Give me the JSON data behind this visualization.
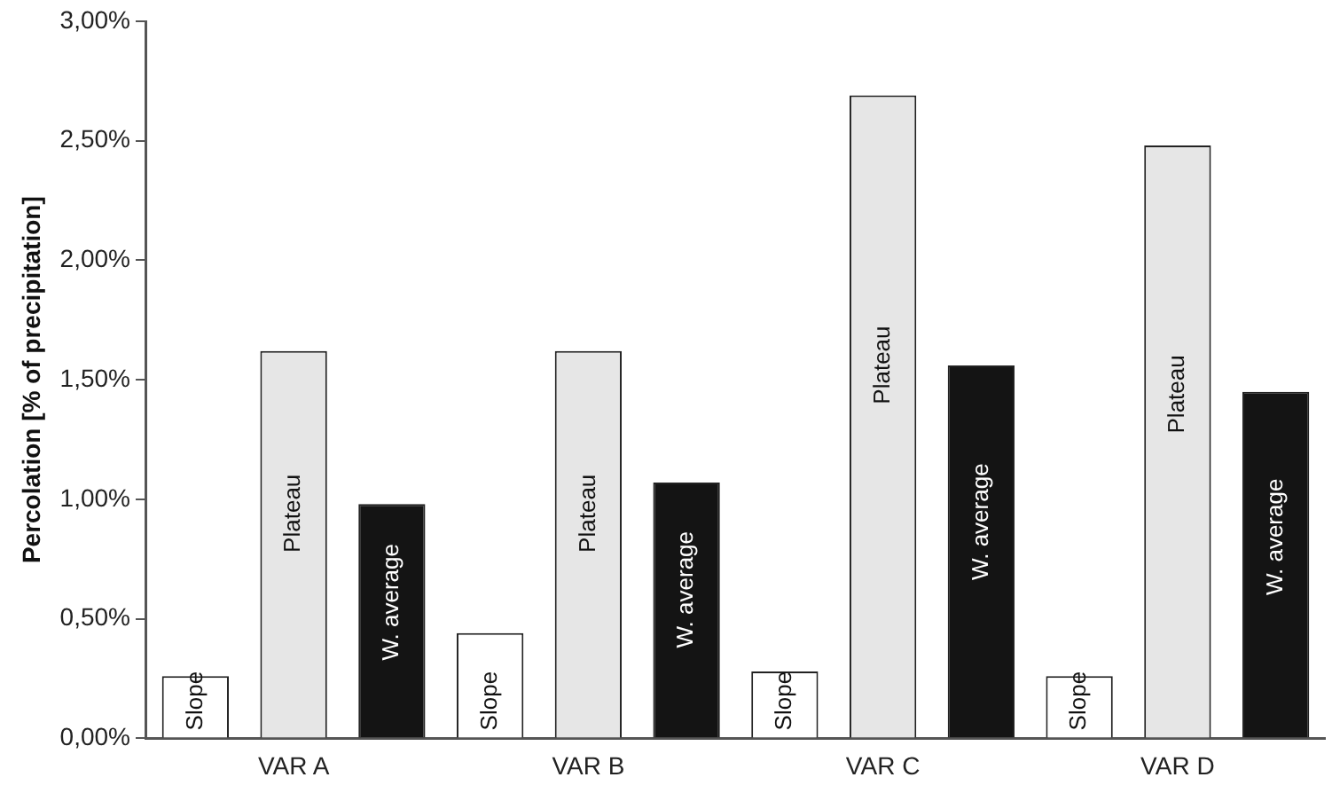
{
  "chart_data": {
    "type": "bar",
    "ylabel": "Percolation [% of precipitation]",
    "categories": [
      "VAR A",
      "VAR B",
      "VAR C",
      "VAR D"
    ],
    "series": [
      {
        "name": "Slope",
        "color": "#ffffff",
        "values": [
          0.26,
          0.44,
          0.28,
          0.26
        ]
      },
      {
        "name": "Plateau",
        "color": "#e6e6e6",
        "values": [
          1.62,
          1.62,
          2.69,
          2.48
        ]
      },
      {
        "name": "W. average",
        "color": "#141414",
        "values": [
          0.98,
          1.07,
          1.56,
          1.45
        ]
      }
    ],
    "ylim": [
      0,
      3
    ],
    "yticks": [
      {
        "value": 0,
        "label": "0,00%"
      },
      {
        "value": 0.5,
        "label": "0,50%"
      },
      {
        "value": 1,
        "label": "1,00%"
      },
      {
        "value": 1.5,
        "label": "1,50%"
      },
      {
        "value": 2,
        "label": "2,00%"
      },
      {
        "value": 2.5,
        "label": "2,50%"
      },
      {
        "value": 3,
        "label": "3,00%"
      }
    ],
    "grid": false,
    "legend": false
  }
}
